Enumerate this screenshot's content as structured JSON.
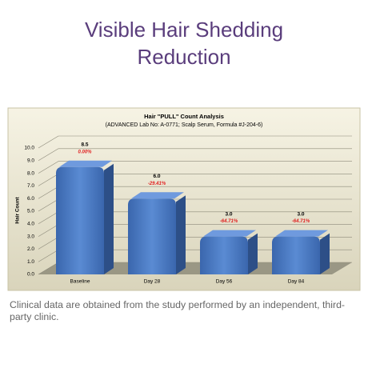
{
  "heading": "Visible Hair Shedding Reduction",
  "chart_data": {
    "type": "bar",
    "title": "Hair \"PULL\" Count Analysis",
    "subtitle": "(ADVANCED Lab No: A-0771; Scalp Serum, Formula #J-204-6)",
    "y_label": "Hair Count",
    "categories": [
      "Baseline",
      "Day 28",
      "Day 56",
      "Day 84"
    ],
    "values": [
      8.5,
      6.0,
      3.0,
      3.0
    ],
    "value_labels": [
      "8.5",
      "6.0",
      "3.0",
      "3.0"
    ],
    "change_labels": [
      "0.00%",
      "-29.41%",
      "-64.71%",
      "-64.71%"
    ],
    "color": "#4a7cc4",
    "ylim": [
      0,
      10
    ],
    "yticks": [
      {
        "value": 0,
        "label": "0.0"
      },
      {
        "value": 1,
        "label": "1.0"
      },
      {
        "value": 2,
        "label": "2.0"
      },
      {
        "value": 3,
        "label": "3.0"
      },
      {
        "value": 4,
        "label": "4.0"
      },
      {
        "value": 5,
        "label": "5.0"
      },
      {
        "value": 6,
        "label": "6.0"
      },
      {
        "value": 7,
        "label": "7.0"
      },
      {
        "value": 8,
        "label": "8.0"
      },
      {
        "value": 9,
        "label": "9.0"
      },
      {
        "value": 10,
        "label": "10.0"
      }
    ],
    "grid": true
  },
  "caption": "Clinical data are obtained from the study performed by an independent, third-party clinic."
}
